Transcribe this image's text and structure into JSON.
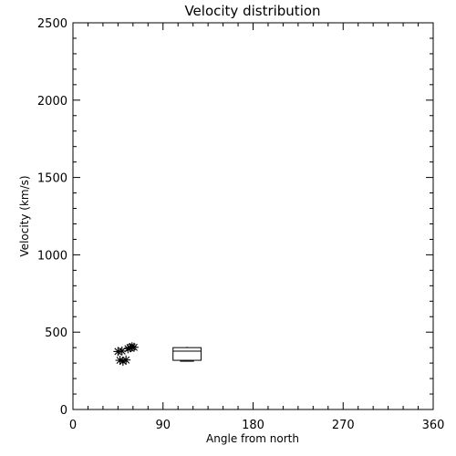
{
  "chart_data": {
    "type": "scatter",
    "title": "Velocity distribution",
    "xlabel": "Angle from north",
    "ylabel": "Velocity (km/s)",
    "xlim": [
      0,
      360
    ],
    "ylim": [
      0,
      2500
    ],
    "xticks": [
      0,
      90,
      180,
      270,
      360
    ],
    "yticks": [
      0,
      500,
      1000,
      1500,
      2000,
      2500
    ],
    "grid": false,
    "points": [
      {
        "x": 45,
        "y": 375
      },
      {
        "x": 49,
        "y": 378
      },
      {
        "x": 47,
        "y": 318
      },
      {
        "x": 50,
        "y": 312
      },
      {
        "x": 53,
        "y": 320
      },
      {
        "x": 55,
        "y": 393
      },
      {
        "x": 57,
        "y": 400
      },
      {
        "x": 59,
        "y": 405
      },
      {
        "x": 61,
        "y": 402
      }
    ],
    "box": {
      "x_min": 100,
      "x_max": 128,
      "q1": 318,
      "median": 377,
      "q3": 400,
      "whisker_low": 312,
      "whisker_high": 405
    }
  },
  "colors": {
    "axes": "#000000",
    "markers": "#000000",
    "background": "#ffffff"
  }
}
